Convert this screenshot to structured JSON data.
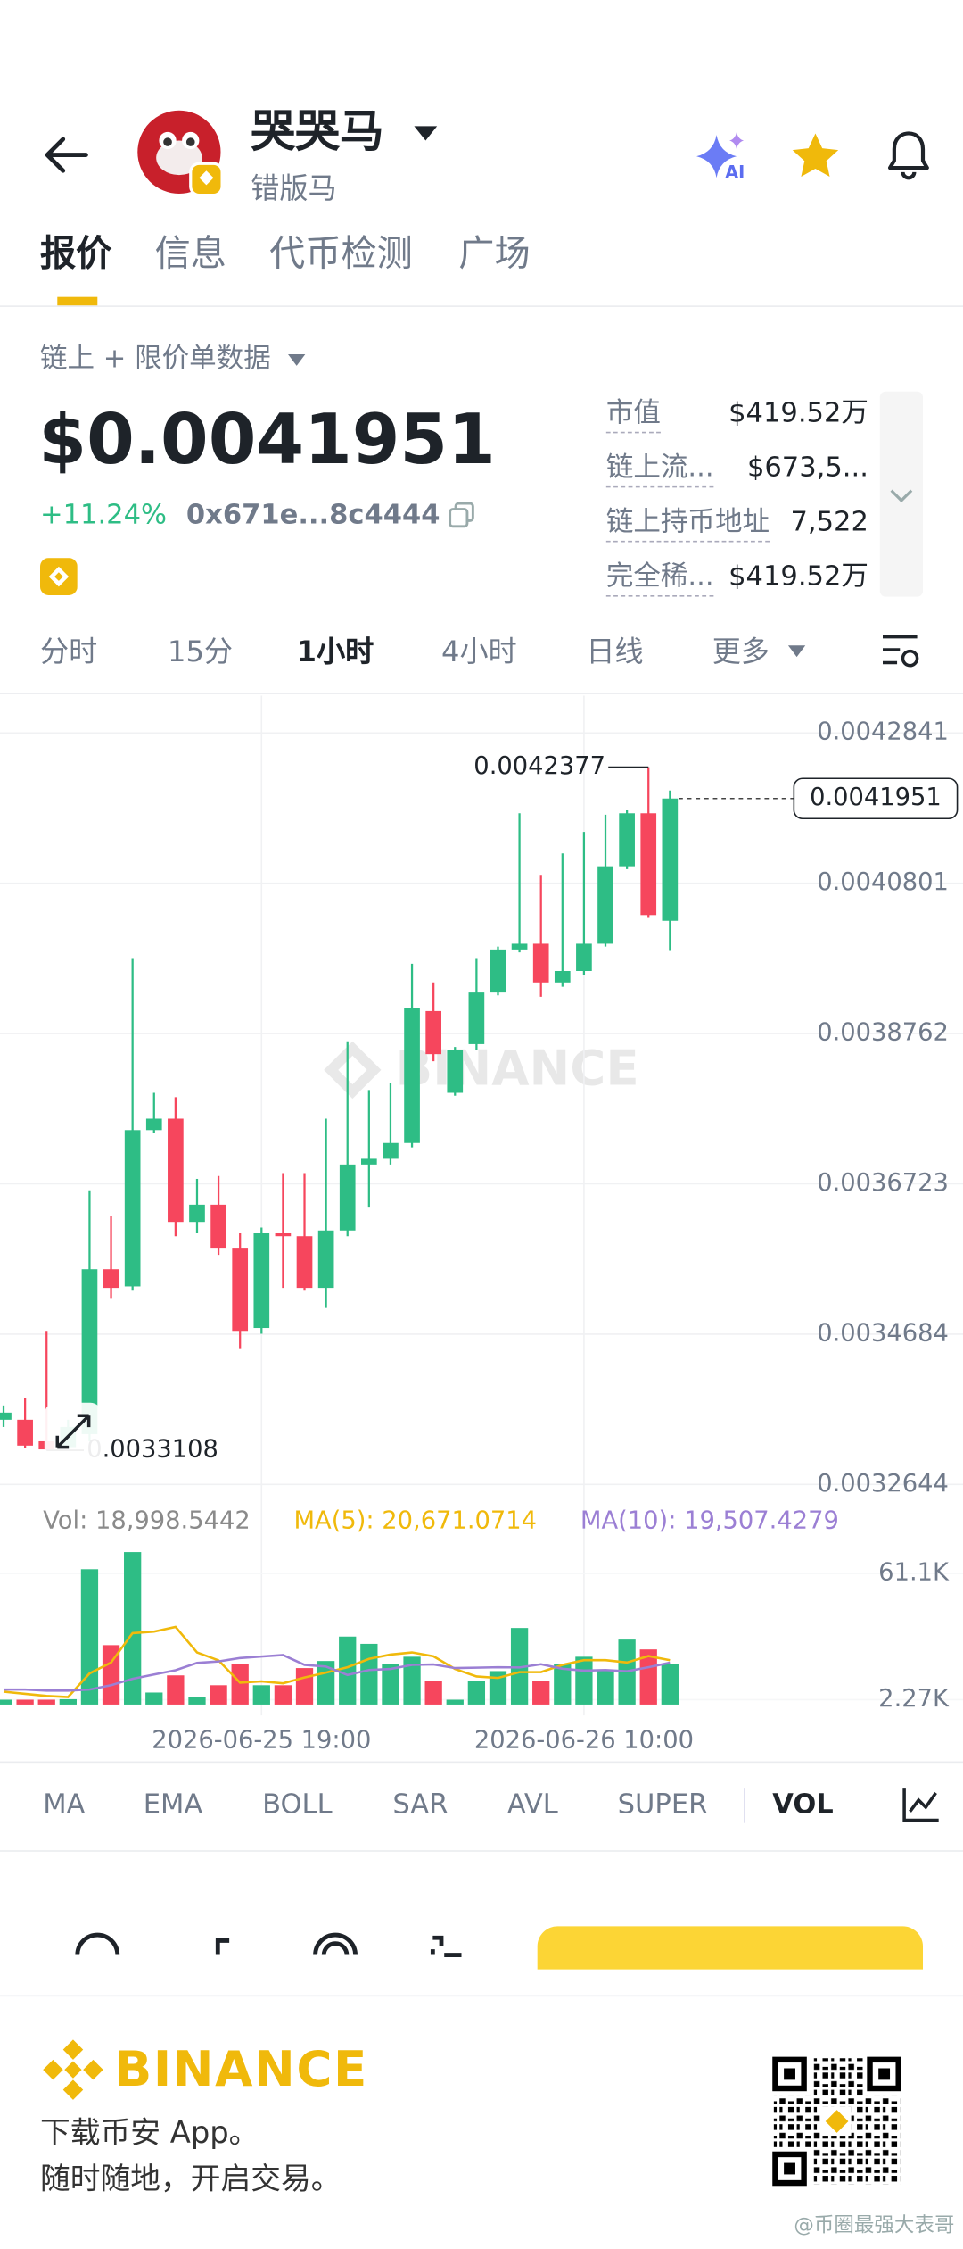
{
  "header": {
    "title": "哭哭马",
    "subtitle": "错版马"
  },
  "tabs": [
    "报价",
    "信息",
    "代币检测",
    "广场"
  ],
  "data_source": "链上 + 限价单数据",
  "price": "$0.0041951",
  "change": "+11.24%",
  "address": "0x671e...8c4444",
  "stats": [
    {
      "label": "市值",
      "value": "$419.52万"
    },
    {
      "label": "链上流...",
      "value": "$673,5..."
    },
    {
      "label": "链上持币地址",
      "value": "7,522"
    },
    {
      "label": "完全稀...",
      "value": "$419.52万"
    }
  ],
  "intervals": [
    "分时",
    "15分",
    "1小时",
    "4小时",
    "日线",
    "更多"
  ],
  "indicators": [
    "MA",
    "EMA",
    "BOLL",
    "SAR",
    "AVL",
    "SUPER",
    "VOL"
  ],
  "watermark": "BINANCE",
  "chart_data": [
    {
      "type": "candlestick",
      "up_color": "#2ebd85",
      "down_color": "#f6465d",
      "open": [
        0.0033522,
        0.0033522,
        0.003323,
        0.003315,
        0.0033327,
        0.0035564,
        0.0035331,
        0.0037452,
        0.0037607,
        0.0036206,
        0.003644,
        0.0035856,
        0.0034767,
        0.0036051,
        0.0036012,
        0.0035311,
        0.003609,
        0.0036985,
        0.0037063,
        0.0037277,
        0.0039067,
        0.0037958,
        0.0038619,
        0.0039319,
        0.0039903,
        0.0039981,
        0.0039456,
        0.0039611,
        0.0039981,
        0.0041032,
        0.0041751,
        0.0040292
      ],
      "high": [
        0.0033716,
        0.0033813,
        0.0034728,
        0.0033522,
        0.0036635,
        0.0036284,
        0.0039786,
        0.0037958,
        0.0037899,
        0.003679,
        0.0036829,
        0.0036051,
        0.0036129,
        0.0036868,
        0.0036868,
        0.0037607,
        0.0038658,
        0.0037996,
        0.0038094,
        0.0039709,
        0.0039456,
        0.003858,
        0.0039786,
        0.0039942,
        0.0041751,
        0.0040915,
        0.0041207,
        0.0041499,
        0.0041732,
        0.004179,
        0.0042377,
        0.004206
      ],
      "low": [
        0.0033424,
        0.0033133,
        0.0033108,
        0.003313,
        0.003323,
        0.0035175,
        0.0035273,
        0.0037413,
        0.0036012,
        0.0036051,
        0.0035759,
        0.0034494,
        0.0034689,
        0.0035311,
        0.0035273,
        0.0035039,
        0.0036012,
        0.0036401,
        0.0036985,
        0.0037218,
        0.0038386,
        0.0037919,
        0.0038541,
        0.0039281,
        0.0039864,
        0.0039261,
        0.0039397,
        0.0039553,
        0.0039942,
        0.0040993,
        0.0040331,
        0.0039884
      ],
      "close": [
        0.0033619,
        0.0033171,
        0.003312,
        0.0033424,
        0.0035564,
        0.0035311,
        0.0037452,
        0.0037607,
        0.0036206,
        0.003644,
        0.0035856,
        0.0034728,
        0.0036051,
        0.0036012,
        0.0035311,
        0.003609,
        0.0036985,
        0.0037063,
        0.0037277,
        0.0039105,
        0.0038483,
        0.0038541,
        0.0039319,
        0.0039903,
        0.0039981,
        0.0039456,
        0.0039611,
        0.0039981,
        0.0041032,
        0.0041751,
        0.004037,
        0.0041951
      ],
      "ylim": [
        0.0032449,
        0.0043347
      ],
      "yticks": [
        0.0042841,
        0.0040801,
        0.0038762,
        0.0036723,
        0.0034684,
        0.0032644
      ],
      "grid": true,
      "max_label": 0.0042377,
      "min_label": 0.0033108,
      "last_price": 0.0041951
    },
    {
      "type": "volume",
      "categories": [
        null,
        null,
        null,
        null,
        null,
        null,
        null,
        null,
        null,
        null,
        null,
        null,
        "2026-06-25 19:00",
        null,
        null,
        null,
        null,
        null,
        null,
        null,
        null,
        null,
        null,
        null,
        null,
        null,
        null,
        "2026-06-26 10:00",
        null,
        null,
        null,
        null
      ],
      "series": [
        {
          "name": "Vol: 18,998.5442",
          "color": "#8a8a8a",
          "values": [
            2270,
            2270,
            2270,
            2500,
            63100,
            27700,
            71100,
            5600,
            13600,
            3600,
            9000,
            19000,
            9000,
            9000,
            17000,
            20300,
            31700,
            28300,
            19000,
            22300,
            11000,
            2270,
            11000,
            15600,
            35700,
            11000,
            19000,
            22300,
            15600,
            30300,
            25700,
            18998.5442
          ]
        },
        {
          "name": "MA(5): 20,671.0714",
          "color": "#f0b90b",
          "values": [
            6000,
            5000,
            4000,
            3500,
            14500,
            19600,
            33300,
            34000,
            36200,
            24300,
            20600,
            10200,
            10800,
            9900,
            12600,
            14900,
            17400,
            21300,
            23300,
            24300,
            22500,
            16600,
            13100,
            12400,
            15100,
            15100,
            18500,
            20700,
            20700,
            19600,
            22600,
            20671.0714
          ]
        },
        {
          "name": "MA(10): 19,507.4279",
          "color": "#9b7fd4",
          "values": [
            7000,
            7000,
            6500,
            6500,
            7000,
            9000,
            12000,
            14000,
            16000,
            19400,
            20100,
            21700,
            22400,
            23100,
            18500,
            17700,
            13800,
            16100,
            16600,
            18500,
            18700,
            17000,
            17200,
            17400,
            17300,
            18800,
            16700,
            15800,
            16100,
            15500,
            17400,
            19507.4279
          ]
        }
      ],
      "ylim": [
        -5080,
        72500
      ],
      "yticks": [
        {
          "value": 61100,
          "label": "61.1K"
        },
        {
          "value": 2270,
          "label": "2.27K"
        }
      ]
    }
  ],
  "footer": {
    "brand": "BINANCE",
    "lines": [
      "下载币安 App。",
      "随时随地，开启交易。"
    ],
    "credit": "@币圈最强大表哥"
  }
}
